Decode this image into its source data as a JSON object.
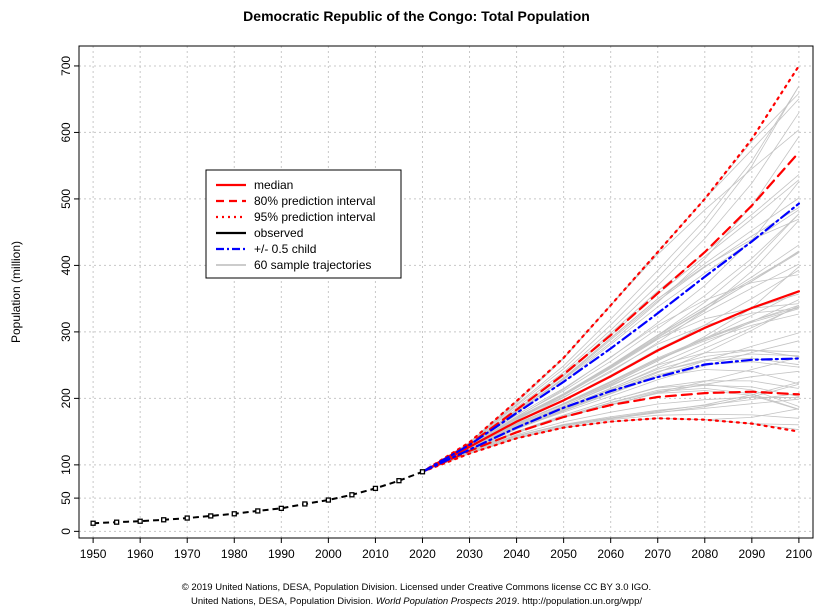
{
  "chart_data": {
    "type": "line",
    "title": "Democratic Republic of the Congo: Total Population",
    "ylabel": "Population (million)",
    "xlabel": "",
    "xlim": [
      1947,
      2103
    ],
    "ylim": [
      -10,
      730
    ],
    "x_ticks": [
      1950,
      1960,
      1970,
      1980,
      1990,
      2000,
      2010,
      2020,
      2030,
      2040,
      2050,
      2060,
      2070,
      2080,
      2090,
      2100
    ],
    "y_ticks": [
      0,
      50,
      100,
      200,
      300,
      400,
      500,
      600,
      700
    ],
    "grid": true,
    "legend_position": "upper-left",
    "legend": [
      {
        "label": "median",
        "color": "#ff0000",
        "style": "solid"
      },
      {
        "label": "80% prediction interval",
        "color": "#ff0000",
        "style": "dashed"
      },
      {
        "label": "95% prediction interval",
        "color": "#ff0000",
        "style": "dotted"
      },
      {
        "label": "observed",
        "color": "#000000",
        "style": "solid"
      },
      {
        "label": "+/- 0.5 child",
        "color": "#0000ff",
        "style": "dashdot"
      },
      {
        "label": "60 sample trajectories",
        "color": "#bbbbbb",
        "style": "solid"
      }
    ],
    "observed": {
      "x": [
        1950,
        1955,
        1960,
        1965,
        1970,
        1975,
        1980,
        1985,
        1990,
        1995,
        2000,
        2005,
        2010,
        2015,
        2020
      ],
      "y": [
        12.2,
        13.8,
        15.2,
        17.4,
        20.0,
        23.2,
        26.4,
        30.7,
        34.6,
        41.2,
        47.1,
        55.0,
        64.6,
        76.2,
        89.6
      ]
    },
    "series": [
      {
        "name": "median",
        "x": [
          2020,
          2030,
          2040,
          2050,
          2060,
          2070,
          2080,
          2090,
          2100
        ],
        "values": [
          89.6,
          127,
          165,
          197,
          233,
          272,
          306,
          336,
          361
        ]
      },
      {
        "name": "80% prediction interval upper",
        "x": [
          2020,
          2030,
          2040,
          2050,
          2060,
          2070,
          2080,
          2090,
          2100
        ],
        "values": [
          89.6,
          131,
          183,
          236,
          295,
          358,
          420,
          490,
          570
        ]
      },
      {
        "name": "80% prediction interval lower",
        "x": [
          2020,
          2030,
          2040,
          2050,
          2060,
          2070,
          2080,
          2090,
          2100
        ],
        "values": [
          89.6,
          121,
          149,
          172,
          190,
          202,
          208,
          210,
          206
        ]
      },
      {
        "name": "95% prediction interval upper",
        "x": [
          2020,
          2030,
          2040,
          2050,
          2060,
          2070,
          2080,
          2090,
          2100
        ],
        "values": [
          89.6,
          134,
          196,
          261,
          340,
          420,
          500,
          590,
          700
        ]
      },
      {
        "name": "95% prediction interval lower",
        "x": [
          2020,
          2030,
          2040,
          2050,
          2060,
          2070,
          2080,
          2090,
          2100
        ],
        "values": [
          89.6,
          117,
          140,
          156,
          165,
          170,
          168,
          162,
          150
        ]
      },
      {
        "name": "+/- 0.5 child upper",
        "x": [
          2020,
          2030,
          2040,
          2050,
          2060,
          2070,
          2080,
          2090,
          2100
        ],
        "values": [
          89.6,
          130,
          178,
          225,
          275,
          328,
          383,
          436,
          493
        ]
      },
      {
        "name": "+/- 0.5 child lower",
        "x": [
          2020,
          2030,
          2040,
          2050,
          2060,
          2070,
          2080,
          2090,
          2100
        ],
        "values": [
          89.6,
          123,
          156,
          186,
          211,
          232,
          251,
          258,
          260
        ]
      }
    ],
    "sample_trajectories": {
      "count": 60,
      "x": [
        2020,
        2030,
        2040,
        2050,
        2060,
        2070,
        2080,
        2090,
        2100
      ],
      "final_range": [
        150,
        690
      ]
    }
  },
  "footer": {
    "line1": "© 2019 United Nations, DESA, Population Division. Licensed under Creative Commons license CC BY 3.0 IGO.",
    "line2_prefix": "United Nations, DESA, Population Division. ",
    "line2_italic": "World Population Prospects 2019",
    "line2_suffix": ". http://population.un.org/wpp/"
  }
}
